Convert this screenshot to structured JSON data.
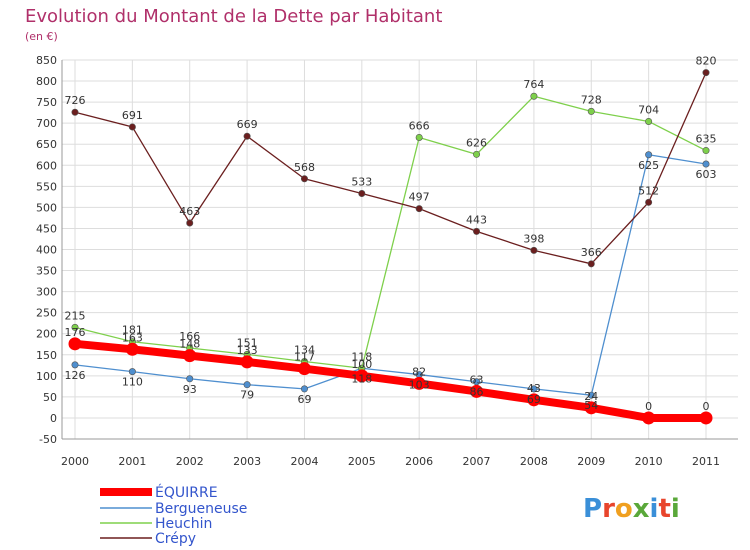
{
  "chart_data": {
    "type": "line",
    "title": "Evolution du Montant de la Dette par Habitant",
    "subtitle": "(en €)",
    "x": [
      "2000",
      "2001",
      "2002",
      "2003",
      "2004",
      "2005",
      "2006",
      "2007",
      "2008",
      "2009",
      "2010",
      "2011"
    ],
    "ylim": [
      -50,
      850
    ],
    "yticks": [
      -50,
      0,
      50,
      100,
      150,
      200,
      250,
      300,
      350,
      400,
      450,
      500,
      550,
      600,
      650,
      700,
      750,
      800,
      850
    ],
    "grid": true,
    "legend_position": "bottom-left",
    "series": [
      {
        "name": "ÉQUIRRE",
        "color": "#ff0000",
        "values": [
          176,
          163,
          148,
          133,
          117,
          100,
          82,
          63,
          43,
          24,
          0,
          0
        ],
        "labels": [
          "176",
          "163",
          "148",
          "133",
          "117",
          "100",
          "82",
          "63",
          "43",
          "24",
          "0",
          "0"
        ]
      },
      {
        "name": "Bergueneuse",
        "color": "#4f8fcf",
        "values": [
          126,
          110,
          93,
          79,
          69,
          118,
          103,
          86,
          69,
          54,
          625,
          603
        ],
        "labels": [
          "126",
          "110",
          "93",
          "79",
          "69",
          "118",
          "103",
          "86",
          "69",
          "54",
          "625",
          "603"
        ]
      },
      {
        "name": "Heuchin",
        "color": "#7ed04b",
        "values": [
          215,
          181,
          166,
          151,
          134,
          118,
          666,
          626,
          764,
          728,
          704,
          635
        ],
        "labels": [
          "215",
          "181",
          "166",
          "151",
          "134",
          "118",
          "666",
          "626",
          "764",
          "728",
          "704",
          "635"
        ]
      },
      {
        "name": "Crépy",
        "color": "#6b1f1f",
        "values": [
          726,
          691,
          463,
          669,
          568,
          533,
          497,
          443,
          398,
          366,
          512,
          820
        ],
        "labels": [
          "726",
          "691",
          "463",
          "669",
          "568",
          "533",
          "497",
          "443",
          "398",
          "366",
          "512",
          "820"
        ]
      }
    ]
  },
  "branding": {
    "logo_text": "Proxiti"
  }
}
